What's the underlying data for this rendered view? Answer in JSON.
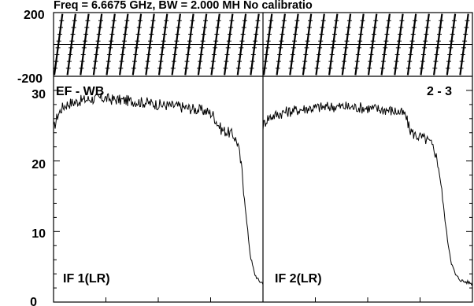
{
  "chart_data": {
    "type": "line",
    "title": "Freq = 6.6675 GHz, BW = 2.000 MH   No calibratio",
    "panel_tag": "EF - WB",
    "baseline": "2 - 3",
    "phase_axis": {
      "ylim": [
        -200,
        200
      ],
      "ticks": [
        "200",
        "-200"
      ]
    },
    "amp_axis": {
      "ylim": [
        0,
        32
      ],
      "ticks": [
        "30",
        "20",
        "10",
        "0"
      ]
    },
    "panels": [
      {
        "label": "IF 1(LR)",
        "amp": {
          "x": [
            0,
            2,
            4,
            6,
            8,
            10,
            12,
            14,
            16,
            18,
            20,
            22,
            24,
            26,
            28,
            30,
            32,
            34,
            36,
            38,
            40,
            42,
            44,
            46,
            48,
            50,
            52,
            54,
            56,
            58,
            60,
            62,
            64,
            66,
            68,
            70,
            72,
            74,
            76,
            78,
            80,
            82,
            84,
            86,
            88,
            90,
            92,
            94,
            96,
            98,
            100
          ],
          "y": [
            24.5,
            26.5,
            27.5,
            28,
            28.2,
            28.3,
            28.5,
            28.6,
            28.7,
            28.8,
            28.8,
            28.9,
            28.9,
            28.8,
            28.7,
            28.7,
            28.6,
            28.6,
            28.5,
            28.5,
            28.4,
            28.3,
            28.3,
            28.2,
            28.1,
            28,
            27.9,
            27.9,
            27.8,
            27.8,
            27.7,
            27.6,
            27.5,
            27.4,
            27.3,
            27.2,
            27.1,
            26.9,
            26.6,
            25.5,
            24.5,
            24.2,
            24,
            23.6,
            22.5,
            18.5,
            12,
            6.5,
            4,
            3,
            2.7
          ]
        },
        "phase_slopes": 16
      },
      {
        "label": "IF 2(LR)",
        "amp": {
          "x": [
            0,
            2,
            4,
            6,
            8,
            10,
            12,
            14,
            16,
            18,
            20,
            22,
            24,
            26,
            28,
            30,
            32,
            34,
            36,
            38,
            40,
            42,
            44,
            46,
            48,
            50,
            52,
            54,
            56,
            58,
            60,
            62,
            64,
            66,
            68,
            70,
            72,
            74,
            76,
            78,
            80,
            82,
            84,
            86,
            88,
            90,
            92,
            94,
            96,
            98,
            100
          ],
          "y": [
            25,
            26,
            26.3,
            26.5,
            26.7,
            26.9,
            27,
            27.1,
            27.2,
            27.3,
            27.4,
            27.5,
            27.5,
            27.6,
            27.6,
            27.6,
            27.7,
            27.7,
            27.7,
            27.7,
            27.7,
            27.6,
            27.6,
            27.6,
            27.5,
            27.5,
            27.4,
            27.4,
            27.3,
            27.3,
            27.2,
            27.1,
            27,
            26.8,
            26.5,
            24.5,
            23.8,
            23.5,
            23.3,
            23,
            22.5,
            21.5,
            19,
            14,
            9,
            5.5,
            3.8,
            3.2,
            2.9,
            2.8,
            2.6
          ]
        },
        "phase_slopes": 16
      }
    ]
  }
}
